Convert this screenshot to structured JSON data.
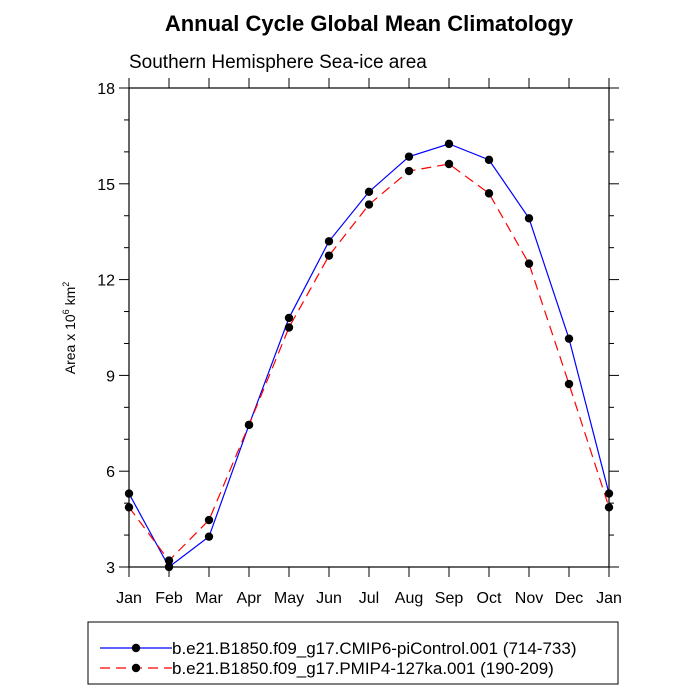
{
  "chart_data": {
    "type": "line",
    "title": "Annual Cycle Global Mean Climatology",
    "subtitle": "Southern Hemisphere Sea-ice area",
    "ylabel": {
      "main": "Area x 10",
      "sup1": "6",
      "unit": " km",
      "sup2": "2"
    },
    "xlabel": "",
    "categories": [
      "Jan",
      "Feb",
      "Mar",
      "Apr",
      "May",
      "Jun",
      "Jul",
      "Aug",
      "Sep",
      "Oct",
      "Nov",
      "Dec",
      "Jan"
    ],
    "ylim": [
      3,
      18
    ],
    "yticks": [
      3,
      6,
      9,
      12,
      15,
      18
    ],
    "series": [
      {
        "name": "b.e21.B1850.f09_g17.CMIP6-piControl.001 (714-733)",
        "color": "#0000ff",
        "dash": "solid",
        "values": [
          5.3,
          3.0,
          3.95,
          7.45,
          10.8,
          13.2,
          14.75,
          15.85,
          16.25,
          15.75,
          13.92,
          10.15,
          5.3
        ]
      },
      {
        "name": "b.e21.B1850.f09_g17.PMIP4-127ka.001 (190-209)",
        "color": "#ff0000",
        "dash": "dashed",
        "values": [
          4.87,
          3.2,
          4.47,
          7.45,
          10.5,
          12.75,
          14.35,
          15.4,
          15.62,
          14.7,
          12.5,
          8.73,
          4.87
        ]
      }
    ],
    "legend_position": "bottom"
  }
}
